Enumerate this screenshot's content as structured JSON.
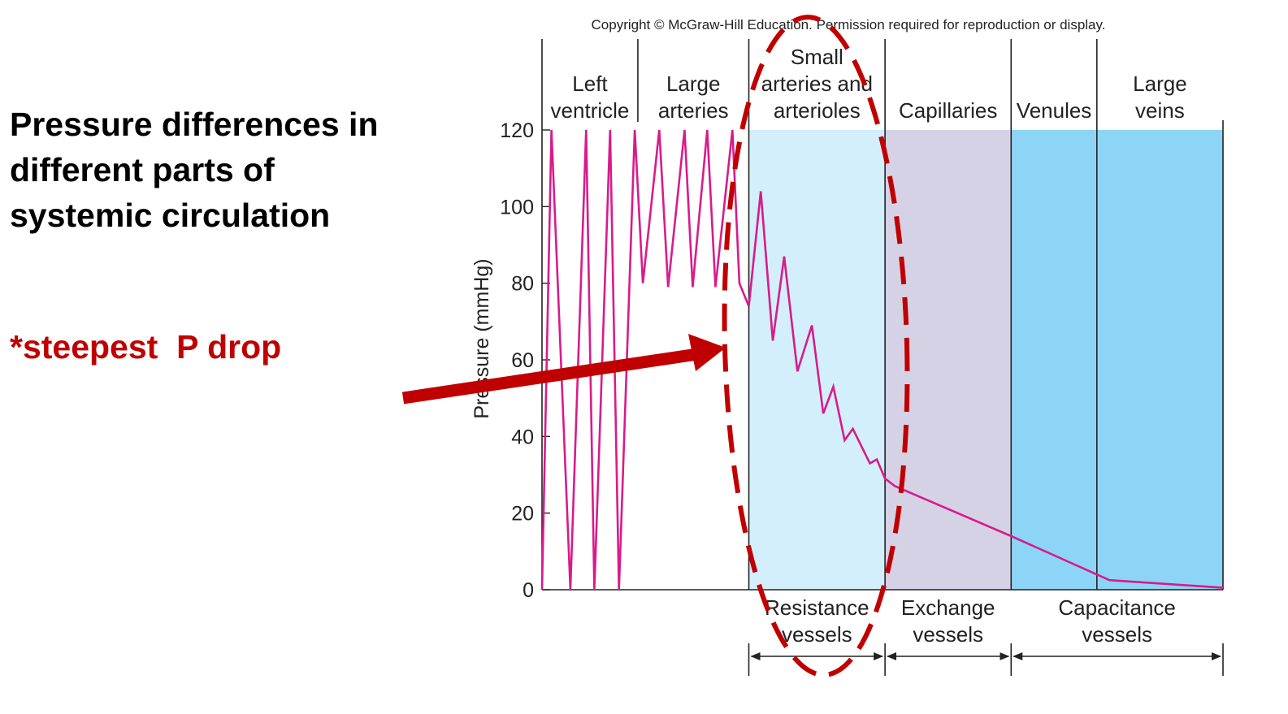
{
  "slide": {
    "title_lines": [
      "Pressure differences in",
      "different parts of",
      "systemic circulation"
    ],
    "callout": "*steepest  P drop"
  },
  "colors": {
    "resistance_region": "#d2effb",
    "exchange_region": "#d5d2e6",
    "capacitance_region": "#8dd5f6",
    "pressure_line": "#d81b8c",
    "annotation": "#c00000"
  },
  "chart_data": {
    "type": "line",
    "title": "",
    "copyright": "Copyright © McGraw-Hill Education. Permission required for reproduction or display.",
    "ylabel": "Pressure (mmHg)",
    "ylim": [
      0,
      120
    ],
    "yticks": [
      "0",
      "20",
      "40",
      "60",
      "80",
      "100",
      "120"
    ],
    "segments": [
      {
        "lines": [
          "Left",
          "ventricle"
        ],
        "range": [
          0,
          1.52
        ]
      },
      {
        "lines": [
          "Large",
          "arteries"
        ],
        "range": [
          1.52,
          3.28
        ]
      },
      {
        "lines": [
          "Small",
          "arteries and",
          "arterioles"
        ],
        "range": [
          3.28,
          5.44
        ]
      },
      {
        "lines": [
          "Capillaries"
        ],
        "range": [
          5.44,
          7.44
        ]
      },
      {
        "lines": [
          "Venules"
        ],
        "range": [
          7.44,
          8.8
        ]
      },
      {
        "lines": [
          "Large",
          "veins"
        ],
        "range": [
          8.8,
          10.8
        ]
      }
    ],
    "regions": [
      {
        "lines": [
          "Resistance",
          "vessels"
        ],
        "range": [
          3.28,
          5.44
        ],
        "color": "resistance_region"
      },
      {
        "lines": [
          "Exchange",
          "vessels"
        ],
        "range": [
          5.44,
          7.44
        ],
        "color": "exchange_region"
      },
      {
        "lines": [
          "Capacitance",
          "vessels"
        ],
        "range": [
          7.44,
          10.8
        ],
        "color": "capacitance_region"
      }
    ],
    "series": [
      {
        "x": [
          0,
          0.15,
          0.45,
          0.7,
          0.83,
          1.08,
          1.22,
          1.47,
          1.6,
          1.86,
          2.0,
          2.26,
          2.39,
          2.62,
          2.75,
          3.02,
          3.13,
          3.28,
          3.47,
          3.66,
          3.84,
          4.05,
          4.28,
          4.46,
          4.62,
          4.8,
          4.93,
          5.2,
          5.31,
          5.44,
          5.6,
          7.44,
          9.0,
          10.8
        ],
        "y": [
          0,
          120,
          0,
          120,
          0,
          120,
          0,
          120,
          80,
          120,
          79,
          120,
          79,
          120,
          79,
          120,
          80,
          74,
          104,
          65,
          87,
          57,
          69,
          46,
          53,
          39,
          42,
          33,
          34,
          29,
          27,
          14,
          2.5,
          0.5
        ]
      }
    ],
    "annotations": [
      {
        "type": "dashed-ellipse",
        "target": "Small arteries and arterioles"
      },
      {
        "type": "arrow",
        "text": "*steepest  P drop"
      }
    ]
  }
}
